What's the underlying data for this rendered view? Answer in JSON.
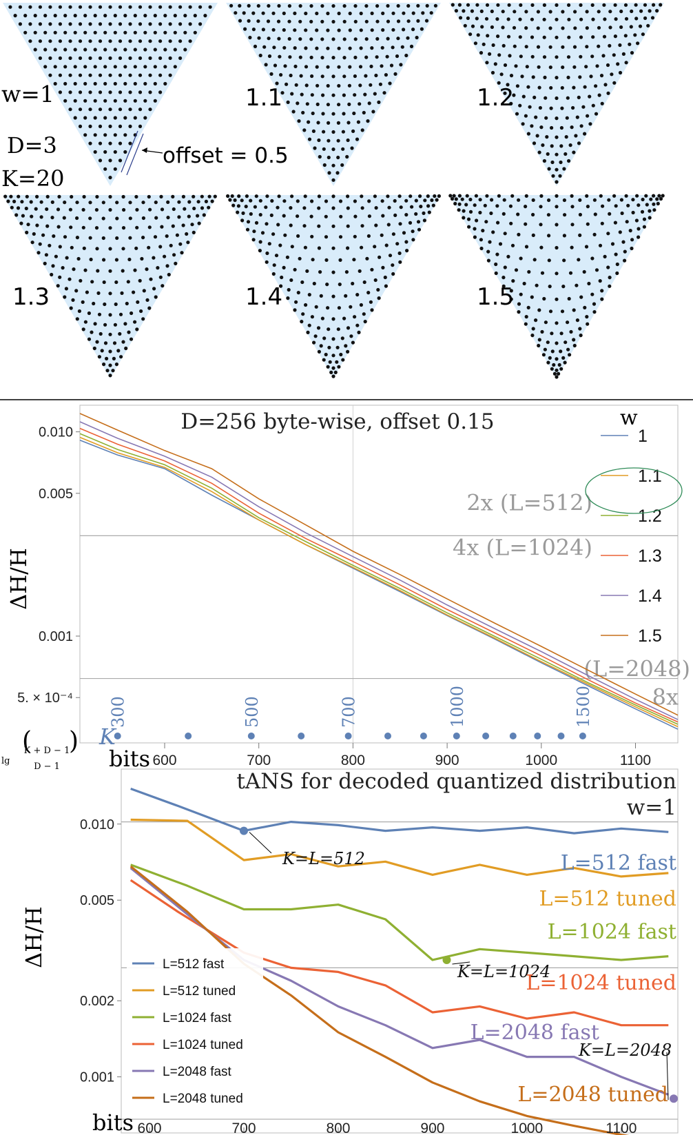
{
  "triangles": {
    "labels": [
      "w=1",
      "1.1",
      "1.2",
      "1.3",
      "1.4",
      "1.5"
    ],
    "params": {
      "D": "D=3",
      "K": "K=20"
    },
    "offset_note": "offset = 0.5",
    "fill_color": "#d9ecfa",
    "dot_color": "#111111"
  },
  "chart_data": [
    {
      "type": "line",
      "title": "D=256 byte-wise, offset 0.15",
      "xlabel": "lg binom(K+D-1, D-1) bits",
      "xlabel_prefix": "lg",
      "xlabel_binom_top": "K + D − 1",
      "xlabel_binom_bottom": "D − 1",
      "xlabel_unit": "bits",
      "ylabel": "ΔH/H",
      "yscale": "log",
      "xlim": [
        510,
        1145
      ],
      "ylim": [
        0.0003,
        0.0135
      ],
      "xticks": [
        600,
        700,
        800,
        900,
        1000,
        1100
      ],
      "yticks": [
        {
          "value": 0.01,
          "label": "0.010"
        },
        {
          "value": 0.005,
          "label": "0.005"
        },
        {
          "value": 0.001,
          "label": "0.001"
        },
        {
          "value": 0.0005,
          "label": "5. × 10⁻⁴"
        }
      ],
      "legend_title": "w",
      "series": [
        {
          "name": "1",
          "color": "#5e81b5",
          "x": [
            510,
            550,
            600,
            650,
            700,
            750,
            800,
            850,
            900,
            950,
            1000,
            1050,
            1100,
            1145
          ],
          "values": [
            0.0091,
            0.0077,
            0.0066,
            0.0049,
            0.0037,
            0.0028,
            0.00215,
            0.00165,
            0.00126,
            0.00097,
            0.00074,
            0.00057,
            0.00044,
            0.00035
          ]
        },
        {
          "name": "1.1",
          "color": "#e19c24",
          "x": [
            510,
            550,
            600,
            650,
            700,
            750,
            800,
            850,
            900,
            950,
            1000,
            1050,
            1100,
            1145
          ],
          "values": [
            0.0094,
            0.0079,
            0.0067,
            0.0051,
            0.0037,
            0.0028,
            0.00217,
            0.00167,
            0.00127,
            0.00098,
            0.00075,
            0.00058,
            0.00045,
            0.00036
          ]
        },
        {
          "name": "1.2",
          "color": "#8fb032",
          "x": [
            510,
            550,
            600,
            650,
            700,
            750,
            800,
            850,
            900,
            950,
            1000,
            1050,
            1100,
            1145
          ],
          "values": [
            0.0098,
            0.0082,
            0.0069,
            0.0053,
            0.0038,
            0.0029,
            0.00222,
            0.00171,
            0.0013,
            0.001,
            0.00077,
            0.00059,
            0.00046,
            0.00037
          ]
        },
        {
          "name": "1.3",
          "color": "#eb6235",
          "x": [
            510,
            550,
            600,
            650,
            700,
            750,
            800,
            850,
            900,
            950,
            1000,
            1050,
            1100,
            1145
          ],
          "values": [
            0.0104,
            0.0087,
            0.0072,
            0.0056,
            0.004,
            0.003,
            0.00232,
            0.00178,
            0.00135,
            0.00104,
            0.0008,
            0.00061,
            0.00047,
            0.00038
          ]
        },
        {
          "name": "1.4",
          "color": "#8778b3",
          "x": [
            510,
            550,
            600,
            650,
            700,
            750,
            800,
            850,
            900,
            950,
            1000,
            1050,
            1100,
            1145
          ],
          "values": [
            0.0112,
            0.0093,
            0.0076,
            0.006,
            0.0043,
            0.0032,
            0.00245,
            0.00188,
            0.00142,
            0.00109,
            0.00084,
            0.00064,
            0.00049,
            0.00039
          ]
        },
        {
          "name": "1.5",
          "color": "#c56e1a",
          "x": [
            510,
            550,
            600,
            650,
            700,
            750,
            800,
            850,
            900,
            950,
            1000,
            1050,
            1100,
            1145
          ],
          "values": [
            0.0123,
            0.0102,
            0.0081,
            0.0066,
            0.0047,
            0.0035,
            0.0026,
            0.002,
            0.00152,
            0.00116,
            0.00089,
            0.00068,
            0.00052,
            0.00041
          ]
        }
      ],
      "reference_lines": [
        {
          "value": 0.0031,
          "labels": [
            "2x (L=512)",
            "4x (L=1024)"
          ]
        },
        {
          "value": 0.00062,
          "labels": [
            "(L=2048)",
            "8x"
          ]
        }
      ],
      "k_axis": {
        "label": "K",
        "x": [
          550,
          625,
          692,
          745,
          795,
          837,
          875,
          910,
          941,
          970,
          996,
          1021,
          1044
        ],
        "labels": [
          "300",
          "",
          "500",
          "",
          "700",
          "",
          "",
          "1000",
          "",
          "",
          "",
          "",
          "1500"
        ]
      }
    },
    {
      "type": "line",
      "title": "tANS for decoded quantized distribution",
      "subtitle": "w=1",
      "xlabel": "bits",
      "ylabel": "ΔH/H",
      "yscale": "log",
      "xlim": [
        570,
        1160
      ],
      "ylim": [
        0.0006,
        0.0165
      ],
      "xticks": [
        600,
        700,
        800,
        900,
        1000,
        1100
      ],
      "yticks": [
        {
          "value": 0.01,
          "label": "0.010"
        },
        {
          "value": 0.005,
          "label": "0.005"
        },
        {
          "value": 0.002,
          "label": "0.002"
        },
        {
          "value": 0.001,
          "label": "0.001"
        }
      ],
      "hlines": [
        0.0102,
        0.0027,
        0.00068
      ],
      "series": [
        {
          "name": "L=512 fast",
          "label": "L=512 fast",
          "color": "#5e81b5",
          "x": [
            580,
            630,
            700,
            750,
            800,
            850,
            900,
            950,
            1000,
            1050,
            1100,
            1150
          ],
          "values": [
            0.0138,
            0.0118,
            0.0094,
            0.0102,
            0.0099,
            0.0094,
            0.0097,
            0.0094,
            0.0097,
            0.0092,
            0.0096,
            0.0093
          ]
        },
        {
          "name": "L=512 tuned",
          "label": "L=512 tuned",
          "color": "#e19c24",
          "x": [
            580,
            640,
            700,
            750,
            800,
            850,
            900,
            950,
            1000,
            1050,
            1100,
            1150
          ],
          "values": [
            0.0104,
            0.0103,
            0.0072,
            0.0076,
            0.0068,
            0.0071,
            0.0063,
            0.0069,
            0.0063,
            0.0067,
            0.0062,
            0.0064
          ]
        },
        {
          "name": "L=1024 fast",
          "label": "L=1024 fast",
          "color": "#8fb032",
          "x": [
            580,
            640,
            700,
            750,
            800,
            850,
            900,
            950,
            1000,
            1050,
            1100,
            1150
          ],
          "values": [
            0.0069,
            0.0057,
            0.0046,
            0.0046,
            0.0048,
            0.0042,
            0.0029,
            0.0032,
            0.0031,
            0.003,
            0.0029,
            0.003
          ]
        },
        {
          "name": "L=1024 tuned",
          "label": "L=1024 tuned",
          "color": "#eb6235",
          "x": [
            580,
            630,
            700,
            750,
            800,
            850,
            900,
            950,
            1000,
            1050,
            1100,
            1150
          ],
          "values": [
            0.006,
            0.0045,
            0.0031,
            0.0027,
            0.0026,
            0.0023,
            0.0018,
            0.0019,
            0.0017,
            0.0018,
            0.0016,
            0.0016
          ]
        },
        {
          "name": "L=2048 fast",
          "label": "L=2048 fast",
          "color": "#8778b3",
          "x": [
            580,
            640,
            700,
            750,
            800,
            850,
            900,
            950,
            1000,
            1050,
            1100,
            1150
          ],
          "values": [
            0.0067,
            0.0044,
            0.0029,
            0.0024,
            0.0019,
            0.0016,
            0.0013,
            0.0014,
            0.0012,
            0.0012,
            0.001,
            0.00085
          ]
        },
        {
          "name": "L=2048 tuned",
          "label": "L=2048 tuned",
          "color": "#c56e1a",
          "x": [
            580,
            640,
            700,
            750,
            800,
            850,
            900,
            950,
            1000,
            1050,
            1100,
            1150
          ],
          "values": [
            0.0068,
            0.0045,
            0.0028,
            0.0021,
            0.0015,
            0.0012,
            0.00095,
            0.0008,
            0.0007,
            0.00064,
            0.00059,
            0.00055
          ]
        }
      ],
      "markers": [
        {
          "x": 700,
          "y": 0.0094,
          "label": "K=L=512",
          "color": "#5e81b5"
        },
        {
          "x": 915,
          "y": 0.0029,
          "label": "K=L=1024",
          "color": "#8fb032"
        },
        {
          "x": 1160,
          "y": 0.00082,
          "label": "K=L=2048",
          "color": "#8778b3"
        }
      ]
    }
  ]
}
